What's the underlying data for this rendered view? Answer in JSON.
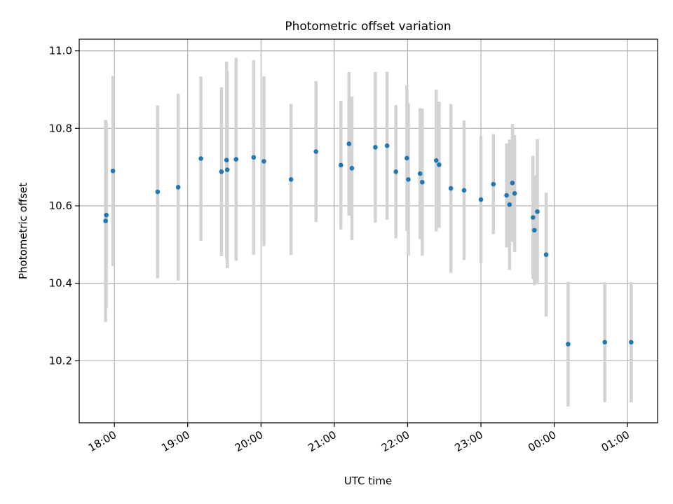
{
  "chart_data": {
    "type": "scatter",
    "title": "Photometric offset variation",
    "xlabel": "UTC time",
    "ylabel": "Photometric offset",
    "x_unit": "hours since 18:00 UTC (values beyond 6.0 are after midnight)",
    "xlim": [
      -0.48,
      7.41
    ],
    "ylim": [
      10.04,
      11.03
    ],
    "x_ticks": [
      {
        "value": 0,
        "label": "18:00"
      },
      {
        "value": 1,
        "label": "19:00"
      },
      {
        "value": 2,
        "label": "20:00"
      },
      {
        "value": 3,
        "label": "21:00"
      },
      {
        "value": 4,
        "label": "22:00"
      },
      {
        "value": 5,
        "label": "23:00"
      },
      {
        "value": 6,
        "label": "00:00"
      },
      {
        "value": 7,
        "label": "01:00"
      }
    ],
    "y_ticks": [
      {
        "value": 10.2,
        "label": "10.2"
      },
      {
        "value": 10.4,
        "label": "10.4"
      },
      {
        "value": 10.6,
        "label": "10.6"
      },
      {
        "value": 10.8,
        "label": "10.8"
      },
      {
        "value": 11.0,
        "label": "11.0"
      }
    ],
    "grid": true,
    "marker_color": "#1f77b4",
    "errorbar_color": "#d3d3d3",
    "series": [
      {
        "name": "Photometric offset",
        "points": [
          {
            "x": -0.12,
            "y": 10.561,
            "err": 0.261
          },
          {
            "x": -0.11,
            "y": 10.576,
            "err": 0.24
          },
          {
            "x": -0.02,
            "y": 10.69,
            "err": 0.245
          },
          {
            "x": 0.59,
            "y": 10.636,
            "err": 0.223
          },
          {
            "x": 0.87,
            "y": 10.648,
            "err": 0.241
          },
          {
            "x": 1.18,
            "y": 10.722,
            "err": 0.212
          },
          {
            "x": 1.46,
            "y": 10.688,
            "err": 0.218
          },
          {
            "x": 1.53,
            "y": 10.718,
            "err": 0.254
          },
          {
            "x": 1.54,
            "y": 10.693,
            "err": 0.254
          },
          {
            "x": 1.66,
            "y": 10.72,
            "err": 0.262
          },
          {
            "x": 1.9,
            "y": 10.725,
            "err": 0.251
          },
          {
            "x": 2.04,
            "y": 10.715,
            "err": 0.219
          },
          {
            "x": 2.41,
            "y": 10.668,
            "err": 0.195
          },
          {
            "x": 2.75,
            "y": 10.74,
            "err": 0.182
          },
          {
            "x": 3.09,
            "y": 10.705,
            "err": 0.166
          },
          {
            "x": 3.2,
            "y": 10.76,
            "err": 0.185
          },
          {
            "x": 3.24,
            "y": 10.697,
            "err": 0.185
          },
          {
            "x": 3.56,
            "y": 10.751,
            "err": 0.194
          },
          {
            "x": 3.72,
            "y": 10.755,
            "err": 0.191
          },
          {
            "x": 3.84,
            "y": 10.688,
            "err": 0.172
          },
          {
            "x": 3.99,
            "y": 10.723,
            "err": 0.188
          },
          {
            "x": 4.01,
            "y": 10.668,
            "err": 0.197
          },
          {
            "x": 4.17,
            "y": 10.683,
            "err": 0.169
          },
          {
            "x": 4.2,
            "y": 10.661,
            "err": 0.19
          },
          {
            "x": 4.39,
            "y": 10.717,
            "err": 0.183
          },
          {
            "x": 4.43,
            "y": 10.706,
            "err": 0.163
          },
          {
            "x": 4.59,
            "y": 10.645,
            "err": 0.218
          },
          {
            "x": 4.77,
            "y": 10.64,
            "err": 0.18
          },
          {
            "x": 5.0,
            "y": 10.616,
            "err": 0.164
          },
          {
            "x": 5.17,
            "y": 10.656,
            "err": 0.129
          },
          {
            "x": 5.35,
            "y": 10.627,
            "err": 0.134
          },
          {
            "x": 5.39,
            "y": 10.603,
            "err": 0.168
          },
          {
            "x": 5.43,
            "y": 10.659,
            "err": 0.152
          },
          {
            "x": 5.46,
            "y": 10.632,
            "err": 0.151
          },
          {
            "x": 5.71,
            "y": 10.57,
            "err": 0.159
          },
          {
            "x": 5.73,
            "y": 10.537,
            "err": 0.142
          },
          {
            "x": 5.77,
            "y": 10.585,
            "err": 0.187
          },
          {
            "x": 5.89,
            "y": 10.474,
            "err": 0.16
          },
          {
            "x": 6.19,
            "y": 10.243,
            "err": 0.161
          },
          {
            "x": 6.69,
            "y": 10.248,
            "err": 0.155
          },
          {
            "x": 7.05,
            "y": 10.248,
            "err": 0.155
          }
        ]
      }
    ]
  }
}
